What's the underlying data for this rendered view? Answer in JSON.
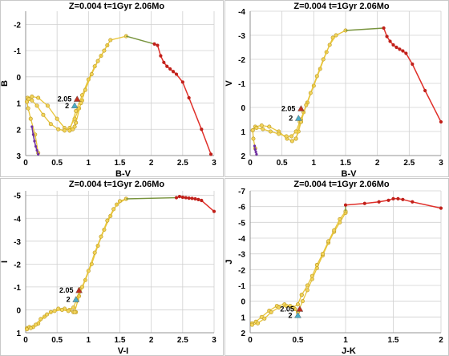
{
  "colors": {
    "yellow_track": "#e8c53a",
    "yellow_marker": "#f2d45c",
    "green_segment": "#77933c",
    "red_branch": "#e0302a",
    "red_marker": "#c0201a",
    "purple_segment": "#7030a0",
    "marker_205": "#c0301f",
    "marker_2": "#4bacc6",
    "grid": "#d0d0d0"
  },
  "chart_data": [
    {
      "type": "line",
      "title": "Z=0.004   t=1Gyr  2.06Mo",
      "xlabel": "B-V",
      "ylabel": "B",
      "xlim": [
        0,
        3
      ],
      "ylim": [
        3,
        -2.5
      ],
      "y_inverted": true,
      "grid": true,
      "xticks": [
        0,
        0.5,
        1,
        1.5,
        2,
        2.5,
        3
      ],
      "xtick_labels": [
        "0",
        "0.5",
        "1",
        "1.5",
        "2",
        "2.5",
        "3"
      ],
      "yticks": [
        -2,
        -1,
        0,
        1,
        2,
        3
      ],
      "ytick_labels": [
        "-2",
        "-1",
        "0",
        "1",
        "2",
        "3"
      ],
      "series": [
        {
          "style": "yellow-track",
          "x": [
            0.2,
            0.15,
            0.08,
            0.04,
            0.02,
            0.03,
            0.1,
            0.2,
            0.35,
            0.5,
            0.62,
            0.7,
            0.75,
            0.78,
            0.8
          ],
          "y": [
            2.9,
            2.2,
            1.6,
            1.2,
            0.95,
            0.8,
            0.75,
            0.8,
            1.1,
            1.6,
            1.95,
            2.05,
            2.0,
            1.9,
            1.75
          ]
        },
        {
          "style": "yellow-track",
          "x": [
            0.02,
            0.05,
            0.1,
            0.18,
            0.28,
            0.4,
            0.52,
            0.62,
            0.7,
            0.78,
            0.85,
            0.9
          ],
          "y": [
            0.95,
            0.85,
            0.9,
            1.1,
            1.45,
            1.8,
            2.0,
            2.05,
            1.95,
            1.6,
            1.2,
            0.9
          ]
        },
        {
          "style": "yellow-track",
          "x": [
            0.7,
            0.8,
            0.9,
            1.0,
            1.1,
            1.2,
            1.3
          ],
          "y": [
            2.05,
            1.3,
            0.7,
            0.1,
            -0.4,
            -0.8,
            -1.2
          ]
        },
        {
          "style": "yellow-track",
          "x": [
            0.8,
            0.88,
            0.95,
            1.05,
            1.15,
            1.25,
            1.35,
            1.6
          ],
          "y": [
            1.75,
            1.0,
            0.5,
            -0.1,
            -0.6,
            -1.0,
            -1.4,
            -1.55
          ]
        },
        {
          "style": "green-line",
          "x": [
            1.6,
            2.05
          ],
          "y": [
            -1.55,
            -1.25
          ]
        },
        {
          "style": "red-branch",
          "x": [
            2.05,
            2.1,
            2.15,
            2.2,
            2.25,
            2.3,
            2.35,
            2.4,
            2.5,
            2.6,
            2.8,
            2.95
          ],
          "y": [
            -1.25,
            -1.2,
            -0.8,
            -0.55,
            -0.4,
            -0.3,
            -0.2,
            -0.1,
            0.2,
            0.8,
            2.0,
            2.95
          ]
        },
        {
          "style": "purple-line",
          "x": [
            0.1,
            0.12,
            0.14,
            0.16,
            0.18,
            0.2
          ],
          "y": [
            1.9,
            2.2,
            2.45,
            2.65,
            2.8,
            2.95
          ]
        }
      ],
      "markers": [
        {
          "label": "2.05",
          "x": 0.82,
          "y": 0.85,
          "color": "marker_205"
        },
        {
          "label": "2",
          "x": 0.78,
          "y": 1.1,
          "color": "marker_2"
        }
      ]
    },
    {
      "type": "line",
      "title": "Z=0.004   t=1Gyr  2.06Mo",
      "xlabel": "B-V",
      "ylabel": "V",
      "xlim": [
        0,
        3
      ],
      "ylim": [
        2,
        -4
      ],
      "y_inverted": true,
      "grid": true,
      "xticks": [
        0,
        0.5,
        1,
        1.5,
        2,
        2.5,
        3
      ],
      "xtick_labels": [
        "0",
        "0.5",
        "1",
        "1.5",
        "2",
        "2.5",
        "3"
      ],
      "yticks": [
        -4,
        -3,
        -2,
        -1,
        0,
        1,
        2
      ],
      "ytick_labels": [
        "-4",
        "-3",
        "-2",
        "-1",
        "0",
        "1",
        "2"
      ],
      "series": [
        {
          "style": "yellow-track",
          "x": [
            0.08,
            0.05,
            0.04,
            0.08,
            0.18,
            0.3,
            0.45,
            0.58,
            0.66,
            0.72,
            0.76,
            0.8
          ],
          "y": [
            1.7,
            1.3,
            0.95,
            0.8,
            0.75,
            0.8,
            1.0,
            1.3,
            1.4,
            1.3,
            1.0,
            0.6
          ]
        },
        {
          "style": "yellow-track",
          "x": [
            0.04,
            0.1,
            0.2,
            0.32,
            0.45,
            0.57,
            0.65,
            0.72,
            0.78,
            0.84,
            0.9
          ],
          "y": [
            0.95,
            0.85,
            0.9,
            1.0,
            1.1,
            1.2,
            1.2,
            1.0,
            0.6,
            0.2,
            -0.2
          ]
        },
        {
          "style": "yellow-track",
          "x": [
            0.72,
            0.8,
            0.9,
            1.0,
            1.1,
            1.2,
            1.3
          ],
          "y": [
            1.3,
            0.5,
            -0.2,
            -0.9,
            -1.6,
            -2.3,
            -2.9
          ]
        },
        {
          "style": "yellow-track",
          "x": [
            0.8,
            0.88,
            0.95,
            1.05,
            1.15,
            1.25,
            1.35,
            1.5
          ],
          "y": [
            0.6,
            -0.1,
            -0.6,
            -1.3,
            -2.0,
            -2.6,
            -3.0,
            -3.2
          ]
        },
        {
          "style": "green-line",
          "x": [
            1.5,
            2.1
          ],
          "y": [
            -3.2,
            -3.3
          ]
        },
        {
          "style": "red-branch",
          "x": [
            2.1,
            2.15,
            2.2,
            2.25,
            2.3,
            2.35,
            2.4,
            2.45,
            2.55,
            2.75,
            3.0
          ],
          "y": [
            -3.3,
            -2.95,
            -2.75,
            -2.6,
            -2.5,
            -2.42,
            -2.35,
            -2.25,
            -1.8,
            -0.7,
            0.6
          ]
        },
        {
          "style": "purple-line",
          "x": [
            0.07,
            0.08,
            0.09,
            0.1
          ],
          "y": [
            1.6,
            1.75,
            1.85,
            1.95
          ]
        }
      ],
      "markers": [
        {
          "label": "2.05",
          "x": 0.8,
          "y": 0.05,
          "color": "marker_205"
        },
        {
          "label": "2",
          "x": 0.76,
          "y": 0.45,
          "color": "marker_2"
        }
      ]
    },
    {
      "type": "line",
      "title": "Z=0.004   t=1Gyr  2.06Mo",
      "xlabel": "V-I",
      "ylabel": "I",
      "xlim": [
        0,
        3
      ],
      "ylim": [
        1,
        -5.2
      ],
      "y_inverted": true,
      "grid": true,
      "xticks": [
        0,
        0.5,
        1,
        1.5,
        2,
        2.5,
        3
      ],
      "xtick_labels": [
        "0",
        "0.5",
        "1",
        "1.5",
        "2",
        "2.5",
        "3"
      ],
      "yticks": [
        -5,
        -4,
        -3,
        -2,
        -1,
        0,
        1
      ],
      "ytick_labels": [
        "-5",
        "-4",
        "-3",
        "-2",
        "-1",
        "0",
        "1"
      ],
      "series": [
        {
          "style": "yellow-track",
          "x": [
            0.02,
            0.06,
            0.12,
            0.2,
            0.3,
            0.4,
            0.52,
            0.62,
            0.7,
            0.76,
            0.8
          ],
          "y": [
            0.8,
            0.75,
            0.75,
            0.6,
            0.3,
            0.1,
            -0.05,
            -0.05,
            0.0,
            0.1,
            0.1
          ]
        },
        {
          "style": "yellow-track",
          "x": [
            0.02,
            0.08,
            0.16,
            0.24,
            0.34,
            0.46,
            0.58,
            0.68,
            0.76,
            0.82,
            0.86
          ],
          "y": [
            0.85,
            0.8,
            0.65,
            0.4,
            0.2,
            0.05,
            0.0,
            0.05,
            -0.1,
            -0.5,
            -0.9
          ]
        },
        {
          "style": "yellow-track",
          "x": [
            0.78,
            0.85,
            0.95,
            1.05,
            1.15,
            1.25,
            1.35,
            1.45,
            1.6
          ],
          "y": [
            0.1,
            -0.6,
            -1.3,
            -2.0,
            -2.8,
            -3.5,
            -4.1,
            -4.6,
            -4.85
          ]
        },
        {
          "style": "yellow-track",
          "x": [
            0.82,
            0.9,
            1.0,
            1.1,
            1.2,
            1.3,
            1.4,
            1.5,
            1.6
          ],
          "y": [
            -0.4,
            -1.0,
            -1.7,
            -2.5,
            -3.2,
            -3.9,
            -4.4,
            -4.75,
            -4.85
          ]
        },
        {
          "style": "green-line",
          "x": [
            1.6,
            2.4
          ],
          "y": [
            -4.85,
            -4.9
          ]
        },
        {
          "style": "red-branch",
          "x": [
            2.4,
            2.45,
            2.5,
            2.55,
            2.6,
            2.65,
            2.7,
            2.75,
            2.8,
            3.0
          ],
          "y": [
            -4.9,
            -4.95,
            -4.92,
            -4.9,
            -4.88,
            -4.87,
            -4.85,
            -4.82,
            -4.78,
            -4.3
          ]
        }
      ],
      "markers": [
        {
          "label": "2.05",
          "x": 0.85,
          "y": -0.85,
          "color": "marker_205"
        },
        {
          "label": "2",
          "x": 0.8,
          "y": -0.45,
          "color": "marker_2"
        }
      ]
    },
    {
      "type": "line",
      "title": "Z=0.004   t=1Gyr  2.06Mo",
      "xlabel": "J-K",
      "ylabel": "J",
      "xlim": [
        0,
        2
      ],
      "ylim": [
        2,
        -7
      ],
      "y_inverted": true,
      "grid": true,
      "xticks": [
        0,
        0.5,
        1,
        1.5,
        2
      ],
      "xtick_labels": [
        "0",
        "0.5",
        "1",
        "1.5",
        "2"
      ],
      "yticks": [
        -7,
        -6,
        -5,
        -4,
        -3,
        -2,
        -1,
        0,
        1,
        2
      ],
      "ytick_labels": [
        "-7",
        "-6",
        "-5",
        "-4",
        "-3",
        "-2",
        "-1",
        "0",
        "1",
        "2"
      ],
      "series": [
        {
          "style": "yellow-track",
          "x": [
            0.02,
            0.06,
            0.12,
            0.2,
            0.28,
            0.36,
            0.42,
            0.47,
            0.5
          ],
          "y": [
            1.4,
            1.3,
            1.0,
            0.6,
            0.3,
            0.2,
            0.3,
            0.5,
            0.7
          ]
        },
        {
          "style": "yellow-track",
          "x": [
            0.02,
            0.08,
            0.15,
            0.22,
            0.3,
            0.38,
            0.45,
            0.5,
            0.54
          ],
          "y": [
            1.5,
            1.4,
            1.1,
            0.7,
            0.4,
            0.3,
            0.4,
            0.2,
            -0.4
          ]
        },
        {
          "style": "yellow-track",
          "x": [
            0.5,
            0.55,
            0.6,
            0.65,
            0.7,
            0.76,
            0.82,
            0.88,
            0.94,
            1.0
          ],
          "y": [
            0.7,
            0.0,
            -0.7,
            -1.4,
            -2.1,
            -2.9,
            -3.7,
            -4.4,
            -5.0,
            -5.6
          ]
        },
        {
          "style": "yellow-track",
          "x": [
            0.54,
            0.6,
            0.65,
            0.7,
            0.76,
            0.82,
            0.88,
            0.94,
            1.0
          ],
          "y": [
            -0.4,
            -1.0,
            -1.6,
            -2.3,
            -3.0,
            -3.8,
            -4.5,
            -5.2,
            -5.7
          ]
        },
        {
          "style": "green-line",
          "x": [
            1.0,
            1.0
          ],
          "y": [
            -5.7,
            -6.1
          ]
        },
        {
          "style": "red-branch",
          "x": [
            1.0,
            1.2,
            1.35,
            1.45,
            1.5,
            1.55,
            1.6,
            1.7,
            2.0
          ],
          "y": [
            -6.1,
            -6.2,
            -6.3,
            -6.4,
            -6.5,
            -6.5,
            -6.45,
            -6.3,
            -5.9
          ]
        }
      ],
      "markers": [
        {
          "label": "2.05",
          "x": 0.52,
          "y": 0.5,
          "color": "marker_205"
        },
        {
          "label": "2",
          "x": 0.5,
          "y": 0.9,
          "color": "marker_2"
        }
      ]
    }
  ]
}
